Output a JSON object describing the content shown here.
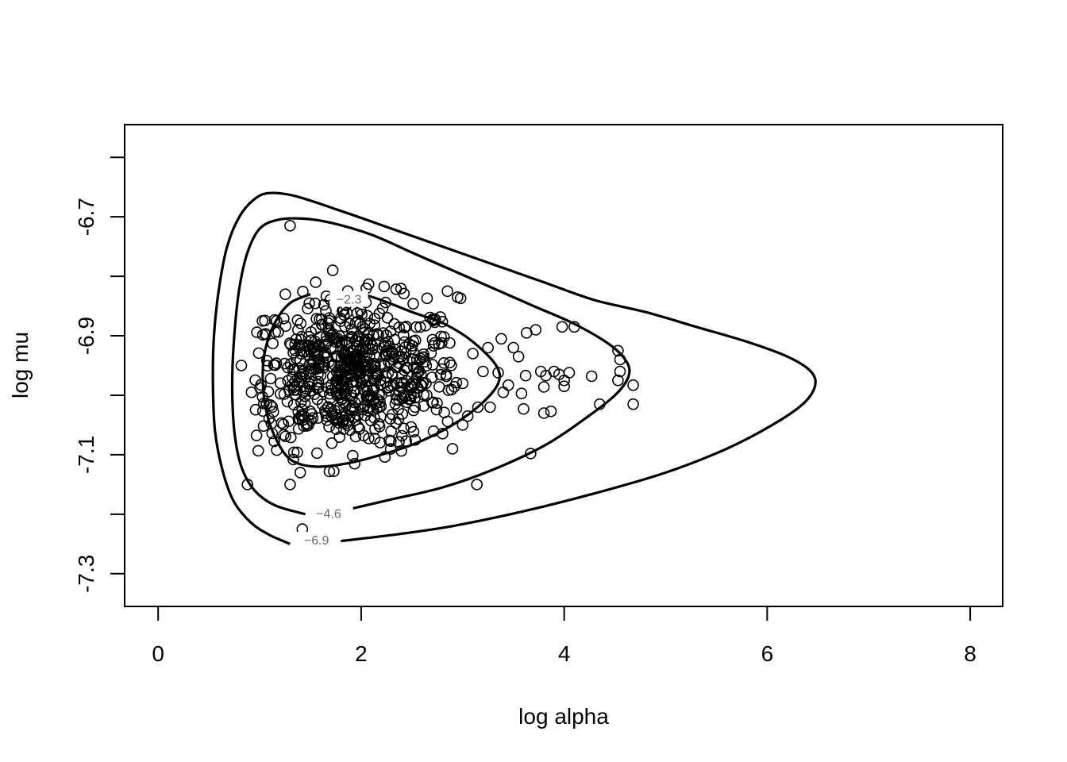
{
  "chart_data": {
    "type": "scatter",
    "title": "",
    "xlabel": "log alpha",
    "ylabel": "log mu",
    "xlim": [
      -0.33,
      8.32
    ],
    "ylim": [
      -7.355,
      -6.545
    ],
    "xticks": [
      0,
      2,
      4,
      6,
      8
    ],
    "xtick_labels": [
      "0",
      "2",
      "4",
      "6",
      "8"
    ],
    "yticks": [
      -7.3,
      -7.2,
      -7.1,
      -7.0,
      -6.9,
      -6.8,
      -6.7,
      -6.6
    ],
    "ytick_labels": [
      "-7.3",
      "",
      "-7.1",
      "",
      "-6.9",
      "",
      "-6.7",
      ""
    ],
    "grid": false,
    "legend": "none",
    "marker": "open-circle",
    "colors": {
      "points": "#000000",
      "contours": "#000000",
      "contour_labels": "#6b6b6b"
    },
    "contours": [
      {
        "label": "-2.3",
        "label_at": [
          1.88,
          -6.838
        ],
        "points": [
          [
            1.5,
            -6.83
          ],
          [
            1.3,
            -6.845
          ],
          [
            1.16,
            -6.875
          ],
          [
            1.06,
            -6.92
          ],
          [
            1.03,
            -6.97
          ],
          [
            1.07,
            -7.03
          ],
          [
            1.18,
            -7.08
          ],
          [
            1.32,
            -7.11
          ],
          [
            1.55,
            -7.12
          ],
          [
            1.85,
            -7.115
          ],
          [
            2.2,
            -7.1
          ],
          [
            2.55,
            -7.08
          ],
          [
            2.9,
            -7.05
          ],
          [
            3.18,
            -7.015
          ],
          [
            3.35,
            -6.98
          ],
          [
            3.33,
            -6.95
          ],
          [
            3.1,
            -6.91
          ],
          [
            2.82,
            -6.88
          ],
          [
            2.5,
            -6.86
          ],
          [
            2.2,
            -6.84
          ],
          [
            1.98,
            -6.828
          ]
        ]
      },
      {
        "label": "-4.6",
        "label_at": [
          1.68,
          -7.198
        ],
        "points": [
          [
            1.92,
            -7.19
          ],
          [
            2.3,
            -7.175
          ],
          [
            2.8,
            -7.155
          ],
          [
            3.3,
            -7.125
          ],
          [
            3.8,
            -7.085
          ],
          [
            4.2,
            -7.04
          ],
          [
            4.5,
            -7.0
          ],
          [
            4.63,
            -6.97
          ],
          [
            4.62,
            -6.945
          ],
          [
            4.45,
            -6.915
          ],
          [
            4.1,
            -6.88
          ],
          [
            3.7,
            -6.85
          ],
          [
            3.3,
            -6.82
          ],
          [
            2.9,
            -6.79
          ],
          [
            2.5,
            -6.76
          ],
          [
            2.1,
            -6.73
          ],
          [
            1.7,
            -6.71
          ],
          [
            1.42,
            -6.703
          ],
          [
            1.18,
            -6.705
          ],
          [
            1.0,
            -6.72
          ],
          [
            0.88,
            -6.76
          ],
          [
            0.8,
            -6.82
          ],
          [
            0.75,
            -6.9
          ],
          [
            0.73,
            -6.98
          ],
          [
            0.75,
            -7.06
          ],
          [
            0.82,
            -7.12
          ],
          [
            0.95,
            -7.16
          ],
          [
            1.15,
            -7.185
          ],
          [
            1.45,
            -7.2
          ]
        ]
      },
      {
        "label": "-6.9",
        "label_at": [
          1.56,
          -7.243
        ],
        "points": [
          [
            1.8,
            -7.245
          ],
          [
            2.3,
            -7.235
          ],
          [
            2.9,
            -7.22
          ],
          [
            3.6,
            -7.195
          ],
          [
            4.3,
            -7.165
          ],
          [
            5.0,
            -7.13
          ],
          [
            5.6,
            -7.09
          ],
          [
            6.05,
            -7.05
          ],
          [
            6.35,
            -7.015
          ],
          [
            6.47,
            -6.985
          ],
          [
            6.43,
            -6.96
          ],
          [
            6.2,
            -6.935
          ],
          [
            5.8,
            -6.91
          ],
          [
            5.3,
            -6.885
          ],
          [
            4.8,
            -6.86
          ],
          [
            4.3,
            -6.84
          ],
          [
            3.8,
            -6.81
          ],
          [
            3.3,
            -6.78
          ],
          [
            2.8,
            -6.75
          ],
          [
            2.3,
            -6.72
          ],
          [
            1.8,
            -6.69
          ],
          [
            1.35,
            -6.665
          ],
          [
            1.1,
            -6.66
          ],
          [
            0.95,
            -6.67
          ],
          [
            0.8,
            -6.7
          ],
          [
            0.68,
            -6.75
          ],
          [
            0.6,
            -6.82
          ],
          [
            0.55,
            -6.9
          ],
          [
            0.54,
            -6.98
          ],
          [
            0.56,
            -7.06
          ],
          [
            0.64,
            -7.13
          ],
          [
            0.75,
            -7.18
          ],
          [
            0.92,
            -7.215
          ],
          [
            1.1,
            -7.235
          ],
          [
            1.3,
            -7.25
          ]
        ]
      }
    ],
    "sample_count": 720,
    "sample_bulk": {
      "center": [
        1.9,
        -6.965
      ],
      "sd": [
        0.55,
        0.062
      ],
      "max_log_alpha": 3.0
    },
    "extra_points": [
      [
        1.72,
        -6.79
      ],
      [
        1.3,
        -6.715
      ],
      [
        0.88,
        -7.15
      ],
      [
        0.82,
        -6.95
      ],
      [
        1.42,
        -7.225
      ],
      [
        0.92,
        -6.995
      ],
      [
        1.3,
        -7.15
      ],
      [
        1.4,
        -7.13
      ],
      [
        3.14,
        -7.15
      ],
      [
        3.67,
        -7.098
      ],
      [
        3.82,
        -6.967
      ],
      [
        3.8,
        -6.986
      ],
      [
        3.77,
        -6.96
      ],
      [
        3.8,
        -7.03
      ],
      [
        3.87,
        -7.027
      ],
      [
        3.72,
        -6.89
      ],
      [
        3.63,
        -6.895
      ],
      [
        3.62,
        -6.967
      ],
      [
        3.55,
        -6.935
      ],
      [
        3.5,
        -6.92
      ],
      [
        3.58,
        -6.997
      ],
      [
        3.6,
        -7.023
      ],
      [
        3.45,
        -6.983
      ],
      [
        3.4,
        -6.995
      ],
      [
        3.35,
        -6.962
      ],
      [
        3.25,
        -6.92
      ],
      [
        3.27,
        -7.02
      ],
      [
        3.15,
        -7.02
      ],
      [
        3.05,
        -7.035
      ],
      [
        2.9,
        -7.09
      ],
      [
        3.0,
        -7.05
      ],
      [
        3.2,
        -6.96
      ],
      [
        3.1,
        -6.93
      ],
      [
        3.0,
        -6.98
      ],
      [
        3.38,
        -6.905
      ],
      [
        3.9,
        -6.96
      ],
      [
        3.95,
        -6.965
      ],
      [
        4.0,
        -6.975
      ],
      [
        4.0,
        -6.985
      ],
      [
        4.05,
        -6.962
      ],
      [
        3.98,
        -6.885
      ],
      [
        4.1,
        -6.885
      ],
      [
        4.27,
        -6.968
      ],
      [
        4.35,
        -7.015
      ],
      [
        4.55,
        -6.94
      ],
      [
        4.55,
        -6.96
      ],
      [
        4.53,
        -6.925
      ],
      [
        4.53,
        -6.975
      ],
      [
        4.68,
        -6.983
      ],
      [
        4.68,
        -7.015
      ],
      [
        2.85,
        -6.825
      ],
      [
        2.95,
        -6.835
      ],
      [
        2.98,
        -6.837
      ],
      [
        2.65,
        -6.837
      ]
    ]
  }
}
